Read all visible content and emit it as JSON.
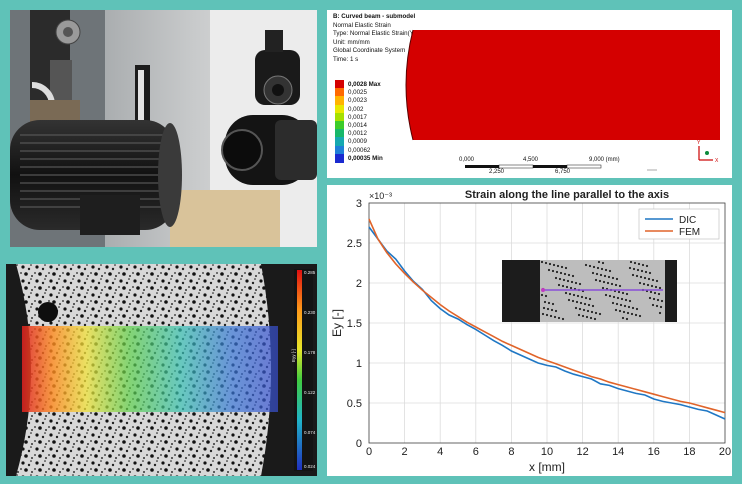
{
  "fem": {
    "title": "B: Curved beam - submodel",
    "lines": [
      "Normal Elastic Strain",
      "Type: Normal Elastic Strain(Y Axis)",
      "Unit: mm/mm",
      "Global Coordinate System",
      "Time: 1 s"
    ],
    "legend": [
      {
        "label": "0,0028 Max",
        "color": "#d40000",
        "bold": true
      },
      {
        "label": "0,0025",
        "color": "#ff6a00",
        "bold": false
      },
      {
        "label": "0,0023",
        "color": "#ffb400",
        "bold": false
      },
      {
        "label": "0,002",
        "color": "#e8e800",
        "bold": false
      },
      {
        "label": "0,0017",
        "color": "#a6e000",
        "bold": false
      },
      {
        "label": "0,0014",
        "color": "#3ccc2a",
        "bold": false
      },
      {
        "label": "0,0012",
        "color": "#18b86a",
        "bold": false
      },
      {
        "label": "0,0009",
        "color": "#16a9b0",
        "bold": false
      },
      {
        "label": "0,00062",
        "color": "#1e7fd8",
        "bold": false
      },
      {
        "label": "0,00035 Min",
        "color": "#1a2ad0",
        "bold": true
      }
    ],
    "scale_top": [
      "0,000",
      "4,500",
      "9,000 (mm)"
    ],
    "scale_bottom": [
      "2,250",
      "6,750"
    ]
  },
  "dic": {
    "colorbar_labels": [
      "0.285",
      "0.230",
      "0.178",
      "0.122",
      "0.074",
      "0.024"
    ],
    "colorbar_title": "Eyy [-]"
  },
  "chart_data": {
    "type": "line",
    "title": "Strain along the line parallel to the axis",
    "xlabel": "x [mm]",
    "ylabel": "Ey [-]",
    "y_multiplier": "×10⁻³",
    "xlim": [
      0,
      20
    ],
    "ylim": [
      0,
      3
    ],
    "xticks": [
      "0",
      "2",
      "4",
      "6",
      "8",
      "10",
      "12",
      "14",
      "16",
      "18",
      "20"
    ],
    "yticks": [
      "0",
      "0.5",
      "1",
      "1.5",
      "2",
      "2.5",
      "3"
    ],
    "grid": true,
    "legend_position": "top-right",
    "series": [
      {
        "name": "DIC",
        "color": "#1f77c4",
        "x": [
          0,
          0.5,
          1,
          1.5,
          2,
          2.5,
          3,
          3.5,
          4,
          4.5,
          5,
          5.5,
          6,
          6.5,
          7,
          7.5,
          8,
          8.5,
          9,
          9.5,
          10,
          10.5,
          11,
          11.5,
          12,
          12.5,
          13,
          13.5,
          14,
          14.5,
          15,
          15.5,
          16,
          16.5,
          17,
          17.5,
          18,
          18.5,
          19,
          19.5,
          20
        ],
        "y": [
          2.7,
          2.55,
          2.4,
          2.3,
          2.15,
          2.02,
          1.92,
          1.78,
          1.68,
          1.6,
          1.55,
          1.48,
          1.42,
          1.35,
          1.28,
          1.22,
          1.15,
          1.1,
          1.05,
          1.0,
          0.97,
          0.95,
          0.9,
          0.86,
          0.83,
          0.8,
          0.74,
          0.72,
          0.68,
          0.65,
          0.62,
          0.6,
          0.55,
          0.52,
          0.5,
          0.48,
          0.45,
          0.42,
          0.4,
          0.35,
          0.3
        ]
      },
      {
        "name": "FEM",
        "color": "#e0642a",
        "x": [
          0,
          0.5,
          1,
          1.5,
          2,
          2.5,
          3,
          3.5,
          4,
          4.5,
          5,
          5.5,
          6,
          6.5,
          7,
          7.5,
          8,
          8.5,
          9,
          9.5,
          10,
          10.5,
          11,
          11.5,
          12,
          12.5,
          13,
          13.5,
          14,
          14.5,
          15,
          15.5,
          16,
          16.5,
          17,
          17.5,
          18,
          18.5,
          19,
          19.5,
          20
        ],
        "y": [
          2.8,
          2.55,
          2.38,
          2.24,
          2.12,
          2.01,
          1.91,
          1.82,
          1.73,
          1.65,
          1.58,
          1.51,
          1.45,
          1.39,
          1.33,
          1.27,
          1.22,
          1.17,
          1.12,
          1.07,
          1.03,
          0.99,
          0.95,
          0.91,
          0.87,
          0.83,
          0.8,
          0.76,
          0.73,
          0.7,
          0.67,
          0.64,
          0.61,
          0.58,
          0.55,
          0.52,
          0.5,
          0.47,
          0.44,
          0.41,
          0.38
        ]
      }
    ]
  }
}
